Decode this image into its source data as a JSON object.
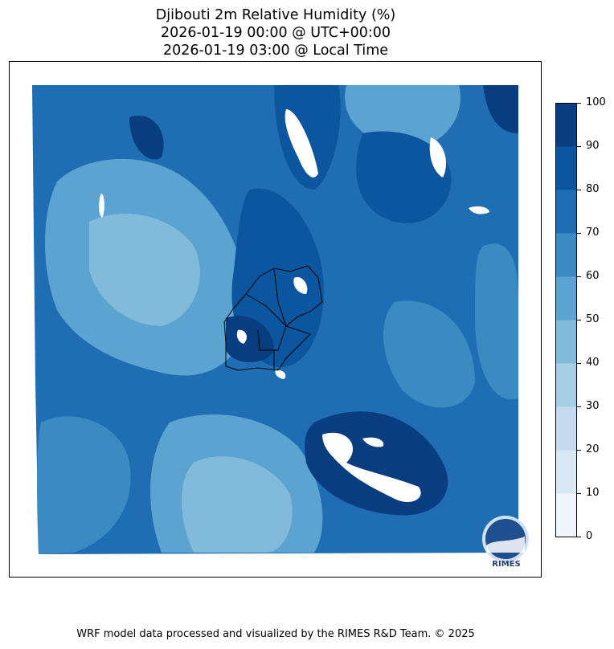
{
  "title": {
    "line1": "Djibouti 2m Relative Humidity (%)",
    "line2": "2026-01-19 00:00 @ UTC+00:00",
    "line3": "2026-01-19 03:00 @ Local Time"
  },
  "chart_data": {
    "type": "filled-contour-map",
    "variable": "2m Relative Humidity (%)",
    "region": "Djibouti",
    "levels": [
      0,
      10,
      20,
      30,
      40,
      50,
      60,
      70,
      80,
      90,
      100
    ],
    "colors": [
      "#f0f6fd",
      "#d9e8f5",
      "#c6dbef",
      "#a6cee4",
      "#82badb",
      "#5ba3d0",
      "#3b8bc2",
      "#1f6eb3",
      "#0c56a0",
      "#083d7f"
    ],
    "colorbar": {
      "ticks": [
        "0",
        "10",
        "20",
        "30",
        "40",
        "50",
        "60",
        "70",
        "80",
        "90",
        "100"
      ],
      "placement": "right",
      "range": [
        0,
        100
      ]
    },
    "colormap": "Blues",
    "masked_color": "#ffffff",
    "boundaries": "country and region outlines in black"
  },
  "logo": {
    "text": "RIMES"
  },
  "footer": "WRF model data processed and visualized by the RIMES R&D Team. © 2025"
}
